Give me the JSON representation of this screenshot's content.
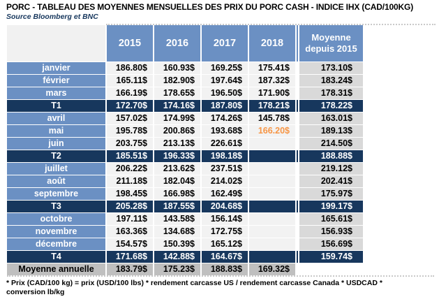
{
  "title": "PORC - TABLEAU DES MOYENNES MENSUELLES DES PRIX DU PORC CASH - INDICE IHX (CAD/100KG)",
  "source": "Source Bloomberg et BNC",
  "footnote": "* Prix (CAD/100 kg) = prix (USD/100 lbs) * rendement carcasse US / rendement carcasse Canada * USDCAD * conversion lb/kg",
  "colors": {
    "header_blue": "#6B90C3",
    "month_blue": "#6B90C3",
    "navy": "#17375D",
    "light_cell": "#F2F2F2",
    "moy_cell": "#D9D9D9",
    "annual_gray": "#BFBFBF",
    "highlight": "#F79646"
  },
  "chart_data": {
    "type": "table",
    "title": "PORC - TABLEAU DES MOYENNES MENSUELLES DES PRIX DU PORC CASH - INDICE IHX (CAD/100KG)",
    "source": "Source Bloomberg et BNC",
    "columns": [
      "2015",
      "2016",
      "2017",
      "2018",
      "Moyenne depuis 2015"
    ],
    "rows": [
      {
        "label": "janvier",
        "kind": "month",
        "values": [
          "186.80$",
          "160.93$",
          "169.25$",
          "175.41$",
          "173.10$"
        ]
      },
      {
        "label": "février",
        "kind": "month",
        "values": [
          "165.11$",
          "182.90$",
          "197.64$",
          "187.32$",
          "183.24$"
        ]
      },
      {
        "label": "mars",
        "kind": "month",
        "values": [
          "166.19$",
          "178.65$",
          "196.50$",
          "171.90$",
          "178.31$"
        ]
      },
      {
        "label": "T1",
        "kind": "quarter",
        "values": [
          "172.70$",
          "174.16$",
          "187.80$",
          "178.21$",
          "178.22$"
        ]
      },
      {
        "label": "avril",
        "kind": "month",
        "values": [
          "157.02$",
          "174.99$",
          "174.26$",
          "145.78$",
          "163.01$"
        ]
      },
      {
        "label": "mai",
        "kind": "month",
        "values": [
          "195.78$",
          "200.86$",
          "193.68$",
          "166.20$",
          "189.13$"
        ],
        "highlight_index": 3
      },
      {
        "label": "juin",
        "kind": "month",
        "values": [
          "203.75$",
          "213.13$",
          "226.61$",
          "",
          "214.50$"
        ]
      },
      {
        "label": "T2",
        "kind": "quarter",
        "values": [
          "185.51$",
          "196.33$",
          "198.18$",
          "",
          "188.88$"
        ]
      },
      {
        "label": "juillet",
        "kind": "month",
        "values": [
          "206.22$",
          "213.62$",
          "237.51$",
          "",
          "219.12$"
        ]
      },
      {
        "label": "août",
        "kind": "month",
        "values": [
          "211.18$",
          "182.04$",
          "214.02$",
          "",
          "202.41$"
        ]
      },
      {
        "label": "septembre",
        "kind": "month",
        "values": [
          "198.45$",
          "166.98$",
          "162.49$",
          "",
          "175.97$"
        ]
      },
      {
        "label": "T3",
        "kind": "quarter",
        "values": [
          "205.28$",
          "187.55$",
          "204.68$",
          "",
          "199.17$"
        ]
      },
      {
        "label": "octobre",
        "kind": "month",
        "values": [
          "197.11$",
          "143.58$",
          "156.14$",
          "",
          "165.61$"
        ]
      },
      {
        "label": "novembre",
        "kind": "month",
        "values": [
          "163.36$",
          "134.68$",
          "172.75$",
          "",
          "156.93$"
        ]
      },
      {
        "label": "décembre",
        "kind": "month",
        "values": [
          "154.57$",
          "150.39$",
          "165.12$",
          "",
          "156.69$"
        ]
      },
      {
        "label": "T4",
        "kind": "quarter",
        "values": [
          "171.68$",
          "142.88$",
          "164.67$",
          "",
          "159.74$"
        ]
      },
      {
        "label": "Moyenne annuelle",
        "kind": "annual",
        "values": [
          "183.79$",
          "175.23$",
          "188.83$",
          "169.32$",
          ""
        ]
      }
    ],
    "footnote": "* Prix (CAD/100 kg) = prix (USD/100 lbs) * rendement carcasse US / rendement carcasse Canada * USDCAD * conversion lb/kg",
    "notes": {
      "highlight_meaning": "valeur la plus récente (mai 2018) en orange",
      "units": "CAD/100KG"
    }
  }
}
